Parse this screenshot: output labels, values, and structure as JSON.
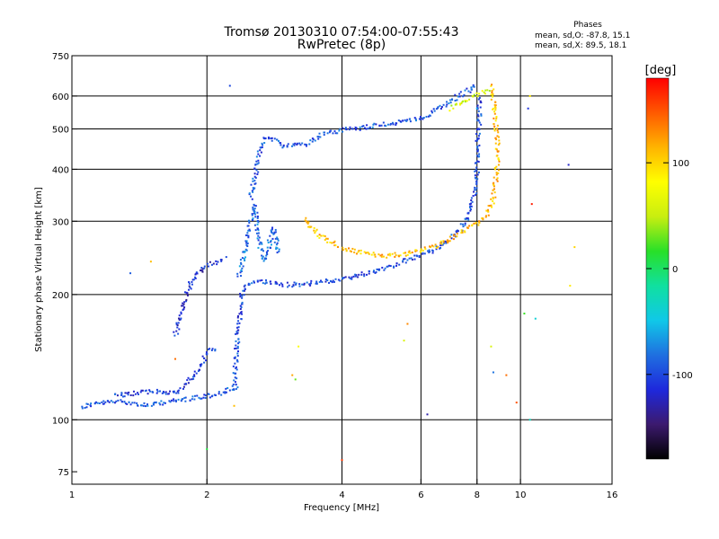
{
  "chart_data": {
    "type": "scatter",
    "title": "Tromsø 20130310 07:54:00-07:55:43",
    "subtitle": "RwPretec (8p)",
    "xlabel": "Frequency [MHz]",
    "ylabel": "Stationary phase Virtual Height [km]",
    "x_scale": "log",
    "y_scale": "log",
    "xlim": [
      1,
      16
    ],
    "ylim": [
      70,
      750
    ],
    "x_ticks": [
      1,
      2,
      4,
      6,
      8,
      10,
      16
    ],
    "y_ticks": [
      75,
      100,
      200,
      300,
      400,
      500,
      600,
      750
    ],
    "x_grid": [
      2,
      4,
      6,
      8,
      10
    ],
    "y_grid": [
      100,
      200,
      300,
      400,
      500,
      600
    ],
    "grid": true,
    "legend": {
      "title": "Phases",
      "lines": [
        "mean, sd,O: -87.8, 15.1",
        "mean, sd,X:  89.5, 18.1"
      ]
    },
    "colorbar": {
      "label": "[deg]",
      "range": [
        -180,
        180
      ],
      "ticks": [
        100,
        0,
        -100
      ],
      "colors": [
        "#000000",
        "#3c1a6e",
        "#1e28dc",
        "#1f6fe0",
        "#10c8e8",
        "#10e0a0",
        "#28e028",
        "#c8ee10",
        "#ffff00",
        "#ffb400",
        "#ff5a00",
        "#ff0000"
      ]
    },
    "traces": [
      {
        "kind": "O",
        "phase_deg": -95,
        "points": [
          [
            1.05,
            107
          ],
          [
            1.1,
            109
          ],
          [
            1.2,
            110
          ],
          [
            1.3,
            111
          ],
          [
            1.4,
            109
          ],
          [
            1.5,
            108
          ],
          [
            1.6,
            110
          ],
          [
            1.7,
            111
          ],
          [
            1.8,
            112
          ],
          [
            1.9,
            113
          ],
          [
            2.0,
            114
          ],
          [
            2.1,
            115
          ],
          [
            2.2,
            117
          ],
          [
            2.35,
            120
          ]
        ]
      },
      {
        "kind": "O",
        "phase_deg": -105,
        "points": [
          [
            1.25,
            114
          ],
          [
            1.4,
            116
          ],
          [
            1.55,
            117
          ],
          [
            1.7,
            116
          ],
          [
            1.8,
            122
          ],
          [
            1.9,
            130
          ],
          [
            2.0,
            145
          ],
          [
            2.1,
            150
          ]
        ]
      },
      {
        "kind": "O",
        "phase_deg": -100,
        "points": [
          [
            2.3,
            120
          ],
          [
            2.32,
            140
          ],
          [
            2.35,
            165
          ],
          [
            2.38,
            185
          ],
          [
            2.4,
            200
          ],
          [
            2.45,
            210
          ],
          [
            2.55,
            214
          ],
          [
            2.7,
            215
          ],
          [
            2.85,
            213
          ],
          [
            3.0,
            211
          ],
          [
            3.3,
            212
          ],
          [
            3.6,
            214
          ],
          [
            3.9,
            217
          ],
          [
            4.2,
            220
          ],
          [
            4.6,
            226
          ],
          [
            5.0,
            232
          ],
          [
            5.5,
            240
          ],
          [
            6.0,
            248
          ],
          [
            6.5,
            258
          ],
          [
            7.0,
            272
          ],
          [
            7.4,
            290
          ],
          [
            7.7,
            315
          ],
          [
            7.9,
            350
          ],
          [
            8.0,
            400
          ],
          [
            8.05,
            470
          ],
          [
            8.1,
            540
          ],
          [
            8.1,
            600
          ]
        ]
      },
      {
        "kind": "O",
        "phase_deg": -95,
        "points": [
          [
            2.5,
            340
          ],
          [
            2.55,
            380
          ],
          [
            2.6,
            420
          ],
          [
            2.65,
            460
          ],
          [
            2.7,
            480
          ],
          [
            2.8,
            470
          ],
          [
            3.0,
            455
          ],
          [
            3.3,
            460
          ],
          [
            3.7,
            490
          ],
          [
            4.2,
            500
          ],
          [
            4.8,
            510
          ],
          [
            5.5,
            520
          ],
          [
            6.0,
            530
          ],
          [
            6.5,
            555
          ],
          [
            7.0,
            585
          ],
          [
            7.4,
            605
          ],
          [
            7.8,
            625
          ],
          [
            8.0,
            640
          ]
        ]
      },
      {
        "kind": "O",
        "phase_deg": -115,
        "points": [
          [
            1.7,
            160
          ],
          [
            1.75,
            180
          ],
          [
            1.8,
            200
          ],
          [
            1.85,
            215
          ],
          [
            1.9,
            225
          ],
          [
            2.0,
            235
          ],
          [
            2.1,
            240
          ],
          [
            2.2,
            245
          ]
        ]
      },
      {
        "kind": "O",
        "phase_deg": -85,
        "points": [
          [
            2.35,
            220
          ],
          [
            2.4,
            240
          ],
          [
            2.45,
            270
          ],
          [
            2.5,
            300
          ],
          [
            2.55,
            330
          ],
          [
            2.6,
            280
          ],
          [
            2.65,
            250
          ],
          [
            2.7,
            240
          ],
          [
            2.75,
            260
          ],
          [
            2.8,
            290
          ],
          [
            2.85,
            270
          ],
          [
            2.9,
            250
          ]
        ]
      },
      {
        "kind": "X",
        "phase_deg": 110,
        "points": [
          [
            3.3,
            305
          ],
          [
            3.4,
            290
          ],
          [
            3.6,
            275
          ],
          [
            3.9,
            262
          ],
          [
            4.2,
            255
          ],
          [
            4.6,
            250
          ],
          [
            5.0,
            248
          ],
          [
            5.5,
            250
          ],
          [
            6.0,
            255
          ],
          [
            6.5,
            262
          ],
          [
            7.0,
            272
          ],
          [
            7.5,
            285
          ],
          [
            8.0,
            295
          ],
          [
            8.4,
            310
          ],
          [
            8.7,
            340
          ],
          [
            8.85,
            390
          ],
          [
            8.9,
            450
          ],
          [
            8.8,
            520
          ],
          [
            8.7,
            580
          ],
          [
            8.6,
            640
          ]
        ]
      },
      {
        "kind": "X",
        "phase_deg": 60,
        "points": [
          [
            7.0,
            560
          ],
          [
            7.4,
            580
          ],
          [
            7.8,
            595
          ],
          [
            8.2,
            610
          ],
          [
            8.5,
            625
          ]
        ]
      }
    ],
    "scatter_noise": [
      [
        [
          2.25,
          635
        ],
        [
          3.1,
          128
        ],
        [
          3.15,
          125
        ],
        [
          3.2,
          150
        ],
        [
          4.0,
          80
        ],
        [
          8.0,
          560
        ],
        [
          8.6,
          150
        ],
        [
          9.3,
          128
        ],
        [
          10.5,
          600
        ],
        [
          10.4,
          560
        ],
        [
          10.6,
          330
        ],
        [
          10.8,
          175
        ],
        [
          12.8,
          410
        ],
        [
          13.2,
          260
        ],
        [
          10.2,
          180
        ],
        [
          8.7,
          130
        ],
        [
          5.6,
          170
        ],
        [
          5.5,
          155
        ],
        [
          6.2,
          103
        ],
        [
          2.0,
          85
        ],
        [
          2.3,
          108
        ],
        [
          1.7,
          140
        ],
        [
          1.5,
          240
        ],
        [
          1.35,
          225
        ],
        [
          9.8,
          110
        ],
        [
          10.5,
          100
        ],
        [
          12.9,
          210
        ]
      ],
      [
        -100,
        120,
        30,
        80,
        160,
        -60,
        60,
        140,
        90,
        -110,
        170,
        -40,
        -120,
        100,
        20,
        -80,
        130,
        60,
        -130,
        10,
        110,
        140,
        110,
        -90,
        150,
        -30,
        90
      ]
    ]
  }
}
